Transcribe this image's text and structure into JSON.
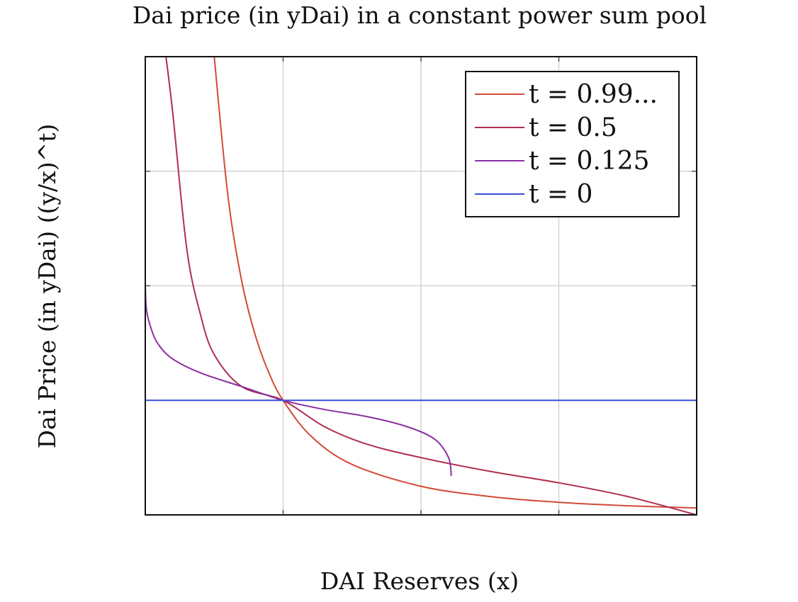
{
  "chart_data": {
    "type": "line",
    "title": "Dai price (in yDai) in a constant power sum pool",
    "xlabel": "DAI Reserves (x)",
    "ylabel": "Dai Price (in yDai) ((y/x)^t)",
    "xlim": [
      0,
      4
    ],
    "ylim": [
      0,
      4
    ],
    "x_tick_positions": [
      1,
      2,
      3
    ],
    "y_tick_positions": [
      1,
      2,
      3
    ],
    "tick_labels_shown": false,
    "grid": true,
    "legend_position": "top-right",
    "series": [
      {
        "name": "t = 0.99...",
        "color": "#d24a36",
        "x": [
          0.5,
          0.6,
          0.7,
          0.8,
          0.9,
          1.0,
          1.2,
          1.5,
          2.0,
          2.5,
          3.0,
          3.5,
          4.0
        ],
        "y": [
          4.0,
          2.78,
          2.04,
          1.56,
          1.23,
          1.0,
          0.69,
          0.44,
          0.25,
          0.16,
          0.11,
          0.08,
          0.06
        ]
      },
      {
        "name": "t = 0.5",
        "color": "#b02e4e",
        "x": [
          0.15,
          0.2,
          0.3,
          0.4,
          0.5,
          0.7,
          1.0,
          1.3,
          1.6,
          2.0,
          2.5,
          3.0,
          3.5,
          4.0
        ],
        "y": [
          4.0,
          3.5,
          2.33,
          1.75,
          1.4,
          1.12,
          1.0,
          0.77,
          0.62,
          0.5,
          0.38,
          0.28,
          0.16,
          0.0
        ]
      },
      {
        "name": "t = 0.125",
        "color": "#8a2fa0",
        "x": [
          0.0,
          0.01,
          0.05,
          0.1,
          0.2,
          0.4,
          0.7,
          1.0,
          1.3,
          1.6,
          1.9,
          2.1,
          2.2,
          2.22
        ],
        "y": [
          2.0,
          1.78,
          1.6,
          1.48,
          1.36,
          1.24,
          1.12,
          1.0,
          0.92,
          0.86,
          0.77,
          0.66,
          0.5,
          0.34
        ]
      },
      {
        "name": "t = 0",
        "color": "#3a4fd6",
        "x": [
          0,
          4
        ],
        "y": [
          1.0,
          1.0
        ]
      }
    ]
  }
}
